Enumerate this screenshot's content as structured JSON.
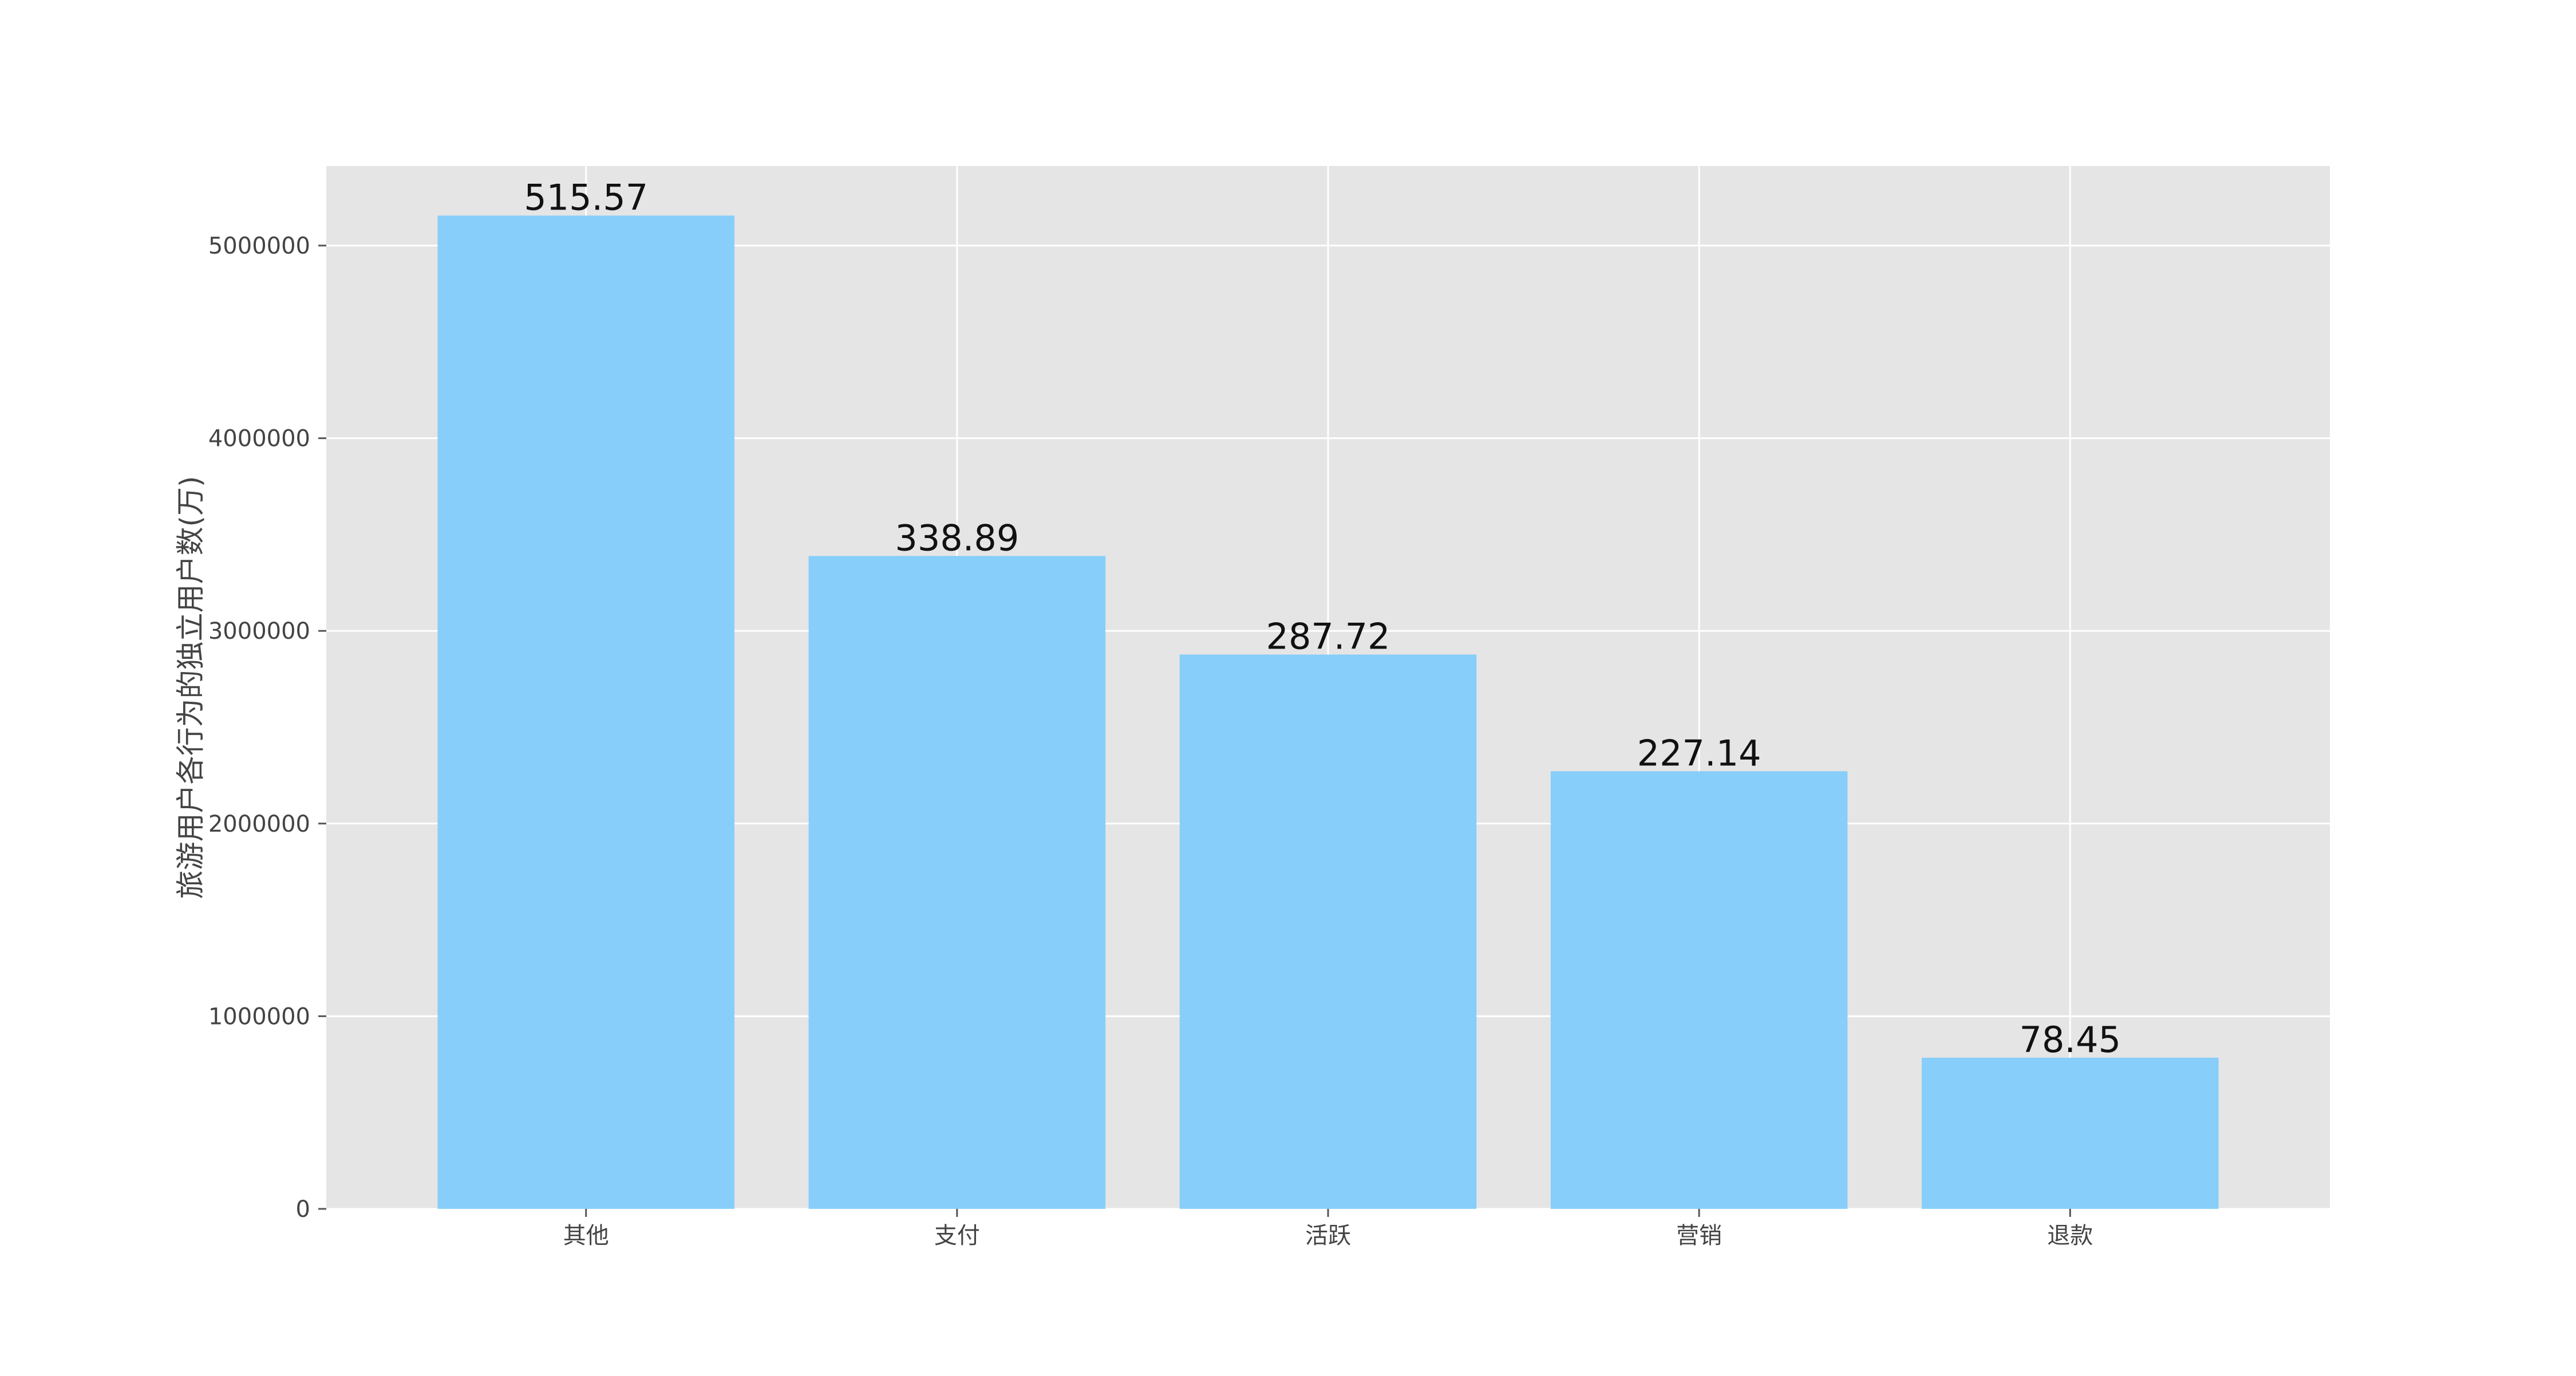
{
  "chart_data": {
    "type": "bar",
    "title": "",
    "xlabel": "",
    "ylabel": "旅游用户各行为的独立用户数(万)",
    "categories": [
      "其他",
      "支付",
      "活跃",
      "营销",
      "退款"
    ],
    "values": [
      5155700,
      3388900,
      2877200,
      2271400,
      784500
    ],
    "data_labels": [
      "515.57",
      "338.89",
      "287.72",
      "227.14",
      "78.45"
    ],
    "ylim": [
      0,
      5412985
    ],
    "yticks": [
      0,
      1000000,
      2000000,
      3000000,
      4000000,
      5000000
    ],
    "ytick_labels": [
      "0",
      "1000000",
      "2000000",
      "3000000",
      "4000000",
      "5000000"
    ],
    "grid": true,
    "legend": "none",
    "colors": {
      "bar": "#87CEFA",
      "plot_background": "#E5E5E5",
      "grid": "#FFFFFF",
      "text": "#444444",
      "data_label": "#111111"
    }
  }
}
